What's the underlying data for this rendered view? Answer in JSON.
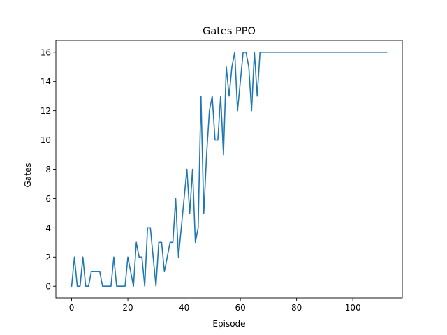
{
  "chart_data": {
    "type": "line",
    "title": "Gates PPO",
    "xlabel": "Episode",
    "ylabel": "Gates",
    "xlim": [
      -5.6,
      117.6
    ],
    "ylim": [
      -0.8,
      16.8
    ],
    "xticks": [
      0,
      20,
      40,
      60,
      80,
      100
    ],
    "yticks": [
      0,
      2,
      4,
      6,
      8,
      10,
      12,
      14,
      16
    ],
    "grid": false,
    "legend": "none",
    "line_color": "#1f77b4",
    "series": [
      {
        "x": [
          0,
          1,
          2,
          3,
          4,
          5,
          6,
          7,
          8,
          9,
          10,
          11,
          12,
          13,
          14,
          15,
          16,
          17,
          18,
          19,
          20,
          21,
          22,
          23,
          24,
          25,
          26,
          27,
          28,
          29,
          30,
          31,
          32,
          33,
          34,
          35,
          36,
          37,
          38,
          39,
          40,
          41,
          42,
          43,
          44,
          45,
          46,
          47,
          48,
          49,
          50,
          51,
          52,
          53,
          54,
          55,
          56,
          57,
          58,
          59,
          60,
          61,
          62,
          63,
          64,
          65,
          66,
          67,
          68,
          69,
          70,
          71,
          72,
          73,
          74,
          75,
          76,
          77,
          78,
          79,
          80,
          81,
          82,
          83,
          84,
          85,
          86,
          87,
          88,
          89,
          90,
          91,
          92,
          93,
          94,
          95,
          96,
          97,
          98,
          99,
          100,
          101,
          102,
          103,
          104,
          105,
          106,
          107,
          108,
          109,
          110,
          111,
          112
        ],
        "values": [
          0,
          2,
          0,
          0,
          2,
          0,
          0,
          1,
          1,
          1,
          1,
          0,
          0,
          0,
          0,
          2,
          0,
          0,
          0,
          0,
          2,
          1,
          0,
          3,
          2,
          2,
          0,
          4,
          4,
          2,
          0,
          3,
          3,
          1,
          2,
          3,
          3,
          6,
          2,
          4,
          6,
          8,
          5,
          8,
          3,
          4,
          13,
          5,
          9,
          12,
          13,
          10,
          10,
          13,
          9,
          15,
          13,
          15,
          16,
          12,
          14,
          16,
          16,
          15,
          12,
          16,
          13,
          16,
          16,
          16,
          16,
          16,
          16,
          16,
          16,
          16,
          16,
          16,
          16,
          16,
          16,
          16,
          16,
          16,
          16,
          16,
          16,
          16,
          16,
          16,
          16,
          16,
          16,
          16,
          16,
          16,
          16,
          16,
          16,
          16,
          16,
          16,
          16,
          16,
          16,
          16,
          16,
          16,
          16,
          16,
          16,
          16,
          16
        ]
      }
    ]
  }
}
